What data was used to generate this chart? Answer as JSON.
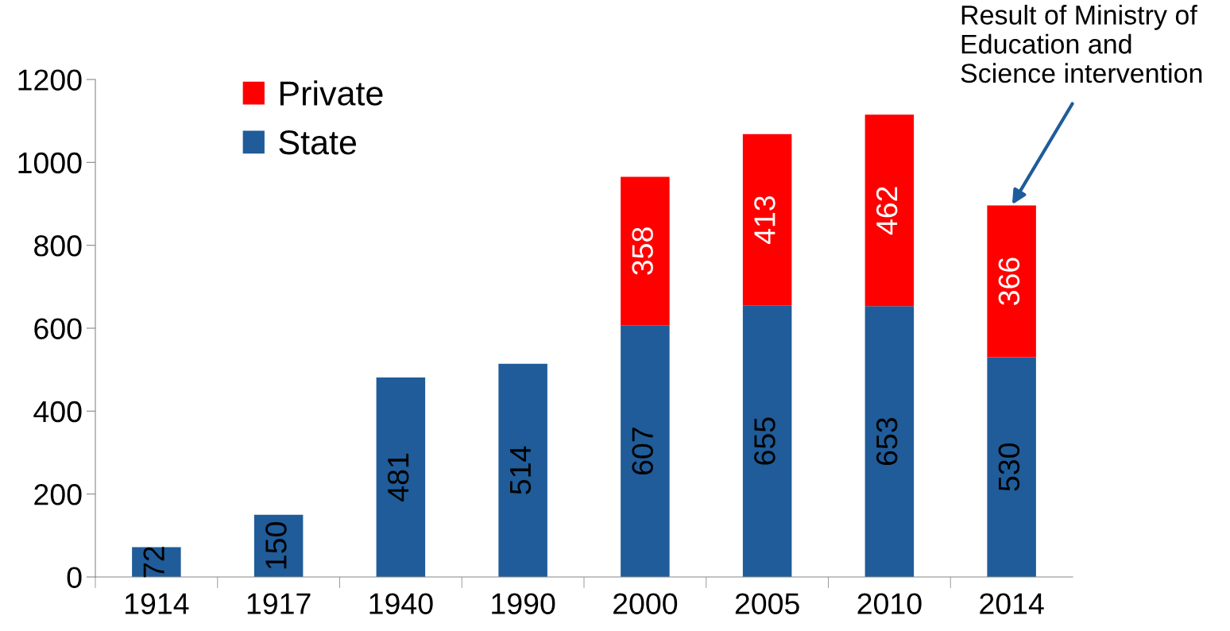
{
  "chart_data": {
    "type": "bar",
    "stacked": true,
    "categories": [
      "1914",
      "1917",
      "1940",
      "1990",
      "2000",
      "2005",
      "2010",
      "2014"
    ],
    "series": [
      {
        "name": "State",
        "color": "#1f5c99",
        "values": [
          72,
          150,
          481,
          514,
          607,
          655,
          653,
          530
        ]
      },
      {
        "name": "Private",
        "color": "#ff0000",
        "values": [
          null,
          null,
          null,
          null,
          358,
          413,
          462,
          366
        ]
      }
    ],
    "ylim": [
      0,
      1200
    ],
    "yticks": [
      0,
      200,
      400,
      600,
      800,
      1000,
      1200
    ],
    "data_labels": true,
    "grid": false,
    "legend": "top left",
    "annotations": [
      {
        "text": "Result of Ministry of\nEducation and\nScience intervention",
        "x": "2014",
        "y": 896
      }
    ]
  }
}
